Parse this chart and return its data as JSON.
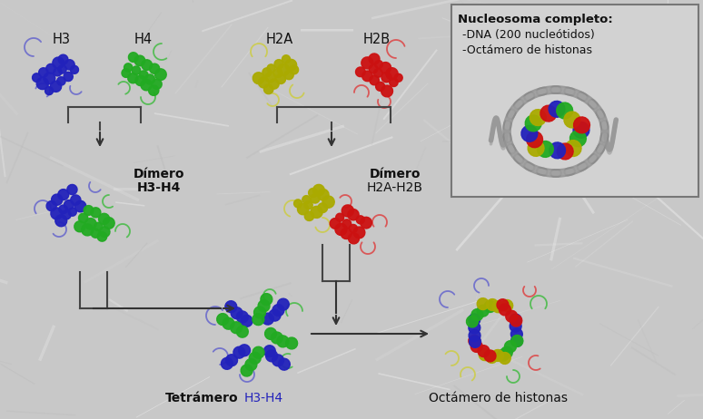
{
  "background_color": "#c2c2c2",
  "labels": {
    "H3": "H3",
    "H4": "H4",
    "H2A": "H2A",
    "H2B": "H2B",
    "dimero_H3H4_line1": "Dímero",
    "dimero_H3H4_line2": "H3-H4",
    "dimero_H2AH2B_line1": "Dímero",
    "dimero_H2AH2B_line2": "H2A-H2B",
    "tetramero": "Tetrámero",
    "tetramero2": "H3-H4",
    "octamero": "Octámero de histonas",
    "nucleosoma_title": "Nucleosoma completo:",
    "nucleosoma_line1": "-DNA (200 nucleótidos)",
    "nucleosoma_line2": "-Octámero de histonas"
  },
  "colors": {
    "H3": "#2222bb",
    "H4": "#22aa22",
    "H2A": "#aaaa00",
    "H2B": "#cc1111",
    "background": "#c2c2c2",
    "arrow": "#333333",
    "text": "#111111",
    "bracket": "#444444",
    "inset_bg": "#d0d0d0",
    "inset_border": "#666666",
    "H3_tail": "#6666cc",
    "H4_tail": "#44bb44",
    "H2A_tail": "#cccc44",
    "H2B_tail": "#dd4444"
  },
  "figsize": [
    7.74,
    4.62
  ],
  "dpi": 100
}
